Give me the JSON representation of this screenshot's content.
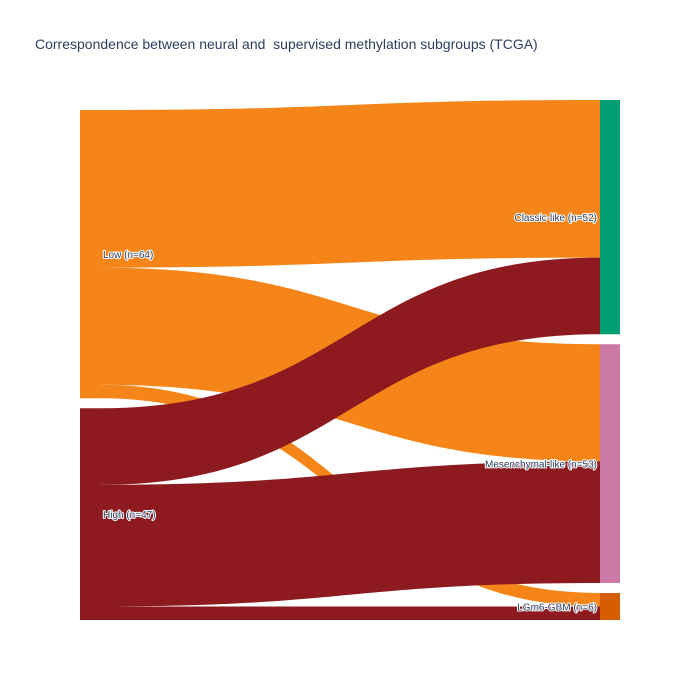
{
  "chart_data": {
    "type": "sankey",
    "title": "Correspondence between neural and  supervised methylation subgroups (TCGA)",
    "sources": [
      {
        "name": "Low (n=64)",
        "color": "#F58518"
      },
      {
        "name": "High (n=47)",
        "color": "#8C1A1F"
      }
    ],
    "targets": [
      {
        "name": "Classic-like (n=52)",
        "color": "#009E73"
      },
      {
        "name": "Mesenchymal-like (n=53)",
        "color": "#CC79A7"
      },
      {
        "name": "LGm6-GBM (n=6)",
        "color": "#D55E00"
      }
    ],
    "flows": [
      {
        "source": "Low (n=64)",
        "target": "Classic-like (n=52)",
        "value": 35
      },
      {
        "source": "Low (n=64)",
        "target": "Mesenchymal-like (n=53)",
        "value": 26
      },
      {
        "source": "Low (n=64)",
        "target": "LGm6-GBM (n=6)",
        "value": 3
      },
      {
        "source": "High (n=47)",
        "target": "Classic-like (n=52)",
        "value": 17
      },
      {
        "source": "High (n=47)",
        "target": "Mesenchymal-like (n=53)",
        "value": 27
      },
      {
        "source": "High (n=47)",
        "target": "LGm6-GBM (n=6)",
        "value": 3
      }
    ]
  }
}
